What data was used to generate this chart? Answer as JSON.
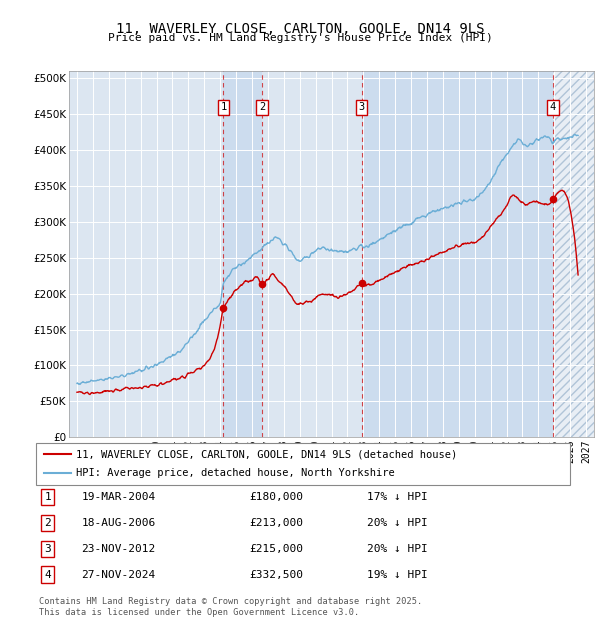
{
  "title": "11, WAVERLEY CLOSE, CARLTON, GOOLE, DN14 9LS",
  "subtitle": "Price paid vs. HM Land Registry's House Price Index (HPI)",
  "ytick_values": [
    0,
    50000,
    100000,
    150000,
    200000,
    250000,
    300000,
    350000,
    400000,
    450000,
    500000
  ],
  "ylim": [
    0,
    510000
  ],
  "xlim_start": 1994.5,
  "xlim_end": 2027.5,
  "bg_color": "#dce6f1",
  "hatch_color": "#b0c4d8",
  "grid_color": "#ffffff",
  "sale_markers": [
    {
      "label": "1",
      "year": 2004.21,
      "price": 180000,
      "date": "19-MAR-2004",
      "pct": "17% ↓ HPI"
    },
    {
      "label": "2",
      "year": 2006.63,
      "price": 213000,
      "date": "18-AUG-2006",
      "pct": "20% ↓ HPI"
    },
    {
      "label": "3",
      "year": 2012.9,
      "price": 215000,
      "date": "23-NOV-2012",
      "pct": "20% ↓ HPI"
    },
    {
      "label": "4",
      "year": 2024.91,
      "price": 332500,
      "date": "27-NOV-2024",
      "pct": "19% ↓ HPI"
    }
  ],
  "legend_line1": "11, WAVERLEY CLOSE, CARLTON, GOOLE, DN14 9LS (detached house)",
  "legend_line2": "HPI: Average price, detached house, North Yorkshire",
  "footnote": "Contains HM Land Registry data © Crown copyright and database right 2025.\nThis data is licensed under the Open Government Licence v3.0.",
  "hpi_color": "#6baed6",
  "price_color": "#cc0000",
  "marker_box_color": "#cc0000",
  "shade_color": "#c6d9ee"
}
